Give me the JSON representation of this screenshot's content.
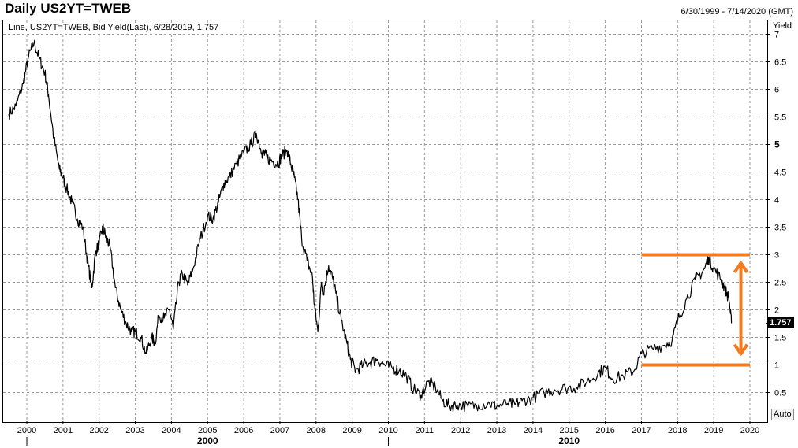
{
  "header": {
    "title": "Daily US2YT=TWEB",
    "date_range": "6/30/1999 - 7/14/2020 (GMT)",
    "series_info": "Line, US2YT=TWEB, Bid Yield(Last), 6/28/2019, 1.757",
    "axis_title": "Yield",
    "auto_button": "Auto",
    "last_value": "1.757"
  },
  "colors": {
    "line": "#000000",
    "annotation": "#f47a20",
    "grid": "#9a9a9a"
  },
  "chart_data": {
    "type": "line",
    "title": "Daily US2YT=TWEB",
    "ylabel": "Yield",
    "ylim": [
      0,
      7
    ],
    "xlim": [
      1999.65,
      2020.55
    ],
    "y_ticks": [
      {
        "value": 0.5,
        "label": "0.5"
      },
      {
        "value": 1,
        "label": "1"
      },
      {
        "value": 1.5,
        "label": "1.5"
      },
      {
        "value": 2,
        "label": "2"
      },
      {
        "value": 2.5,
        "label": "2.5"
      },
      {
        "value": 3,
        "label": "3"
      },
      {
        "value": 3.5,
        "label": "3.5"
      },
      {
        "value": 4,
        "label": "4"
      },
      {
        "value": 4.5,
        "label": "4.5"
      },
      {
        "value": 5,
        "label": "5"
      },
      {
        "value": 5.5,
        "label": "5.5"
      },
      {
        "value": 6,
        "label": "6"
      },
      {
        "value": 6.5,
        "label": "6.5"
      },
      {
        "value": 7,
        "label": "7"
      }
    ],
    "bold_y_ticks": [
      5
    ],
    "x_ticks": [
      "2000",
      "2001",
      "2002",
      "2003",
      "2004",
      "2005",
      "2006",
      "2007",
      "2008",
      "2009",
      "2010",
      "2011",
      "2012",
      "2013",
      "2014",
      "2015",
      "2016",
      "2017",
      "2018",
      "2019",
      "2020"
    ],
    "decade_labels": [
      {
        "year": 2000,
        "label": "2000"
      },
      {
        "year": 2010,
        "label": "2010"
      }
    ],
    "grid": true,
    "series": [
      {
        "x": [
          1999.5,
          1999.7,
          1999.9,
          2000.05,
          2000.2,
          2000.35,
          2000.5,
          2000.6,
          2000.75,
          2000.9,
          2001.0,
          2001.1,
          2001.25,
          2001.4,
          2001.55,
          2001.7,
          2001.8,
          2001.9,
          2002.0,
          2002.1,
          2002.2,
          2002.3,
          2002.45,
          2002.6,
          2002.75,
          2002.9,
          2003.0,
          2003.15,
          2003.3,
          2003.45,
          2003.55,
          2003.65,
          2003.8,
          2003.95,
          2004.05,
          2004.2,
          2004.3,
          2004.45,
          2004.6,
          2004.8,
          2005.0,
          2005.15,
          2005.3,
          2005.45,
          2005.6,
          2005.8,
          2006.0,
          2006.2,
          2006.35,
          2006.5,
          2006.55,
          2006.65,
          2006.8,
          2006.95,
          2007.05,
          2007.2,
          2007.3,
          2007.4,
          2007.5,
          2007.6,
          2007.75,
          2007.9,
          2007.95,
          2008.05,
          2008.15,
          2008.2,
          2008.35,
          2008.45,
          2008.55,
          2008.7,
          2008.85,
          2008.95,
          2009.1,
          2009.3,
          2009.5,
          2009.7,
          2009.9,
          2010.1,
          2010.3,
          2010.5,
          2010.7,
          2010.9,
          2011.1,
          2011.3,
          2011.5,
          2011.7,
          2011.9,
          2012.2,
          2012.5,
          2012.8,
          2013.0,
          2013.3,
          2013.5,
          2013.7,
          2014.0,
          2014.3,
          2014.6,
          2014.9,
          2015.2,
          2015.5,
          2015.8,
          2016.0,
          2016.2,
          2016.5,
          2016.8,
          2017.0,
          2017.3,
          2017.6,
          2017.85,
          2018.0,
          2018.25,
          2018.5,
          2018.75,
          2018.85,
          2019.0,
          2019.2,
          2019.3,
          2019.42,
          2019.49
        ],
        "values": [
          5.55,
          5.7,
          6.1,
          6.6,
          6.85,
          6.55,
          6.3,
          5.9,
          5.1,
          4.55,
          4.4,
          4.2,
          3.95,
          3.65,
          3.5,
          2.8,
          2.4,
          3.05,
          3.2,
          3.5,
          3.3,
          3.15,
          2.4,
          2.0,
          1.75,
          1.6,
          1.6,
          1.5,
          1.2,
          1.5,
          1.4,
          1.9,
          1.85,
          2.0,
          1.65,
          2.5,
          2.65,
          2.45,
          2.75,
          3.3,
          3.7,
          3.65,
          3.95,
          4.3,
          4.4,
          4.65,
          4.85,
          5.0,
          5.2,
          4.85,
          4.85,
          4.75,
          4.7,
          4.65,
          4.8,
          4.9,
          4.65,
          4.4,
          4.0,
          3.3,
          2.9,
          2.6,
          2.1,
          1.6,
          2.5,
          2.3,
          2.8,
          2.6,
          2.3,
          1.8,
          1.4,
          1.1,
          0.9,
          1.0,
          1.05,
          1.1,
          1.0,
          0.95,
          0.9,
          0.8,
          0.55,
          0.45,
          0.7,
          0.6,
          0.35,
          0.25,
          0.28,
          0.25,
          0.28,
          0.3,
          0.25,
          0.3,
          0.28,
          0.35,
          0.4,
          0.5,
          0.55,
          0.58,
          0.6,
          0.7,
          0.85,
          0.95,
          0.75,
          0.8,
          0.9,
          1.2,
          1.3,
          1.35,
          1.45,
          1.8,
          2.2,
          2.55,
          2.75,
          2.95,
          2.75,
          2.55,
          2.4,
          2.2,
          1.757
        ],
        "last_value": 1.757,
        "last_date": "6/28/2019"
      }
    ],
    "annotations": {
      "horizontal_lines": [
        3.0,
        1.0
      ],
      "line_x_range": [
        2017.0,
        2020.0
      ],
      "double_arrow": {
        "x": 2019.75,
        "y_top": 2.85,
        "y_bottom": 1.2
      }
    }
  }
}
